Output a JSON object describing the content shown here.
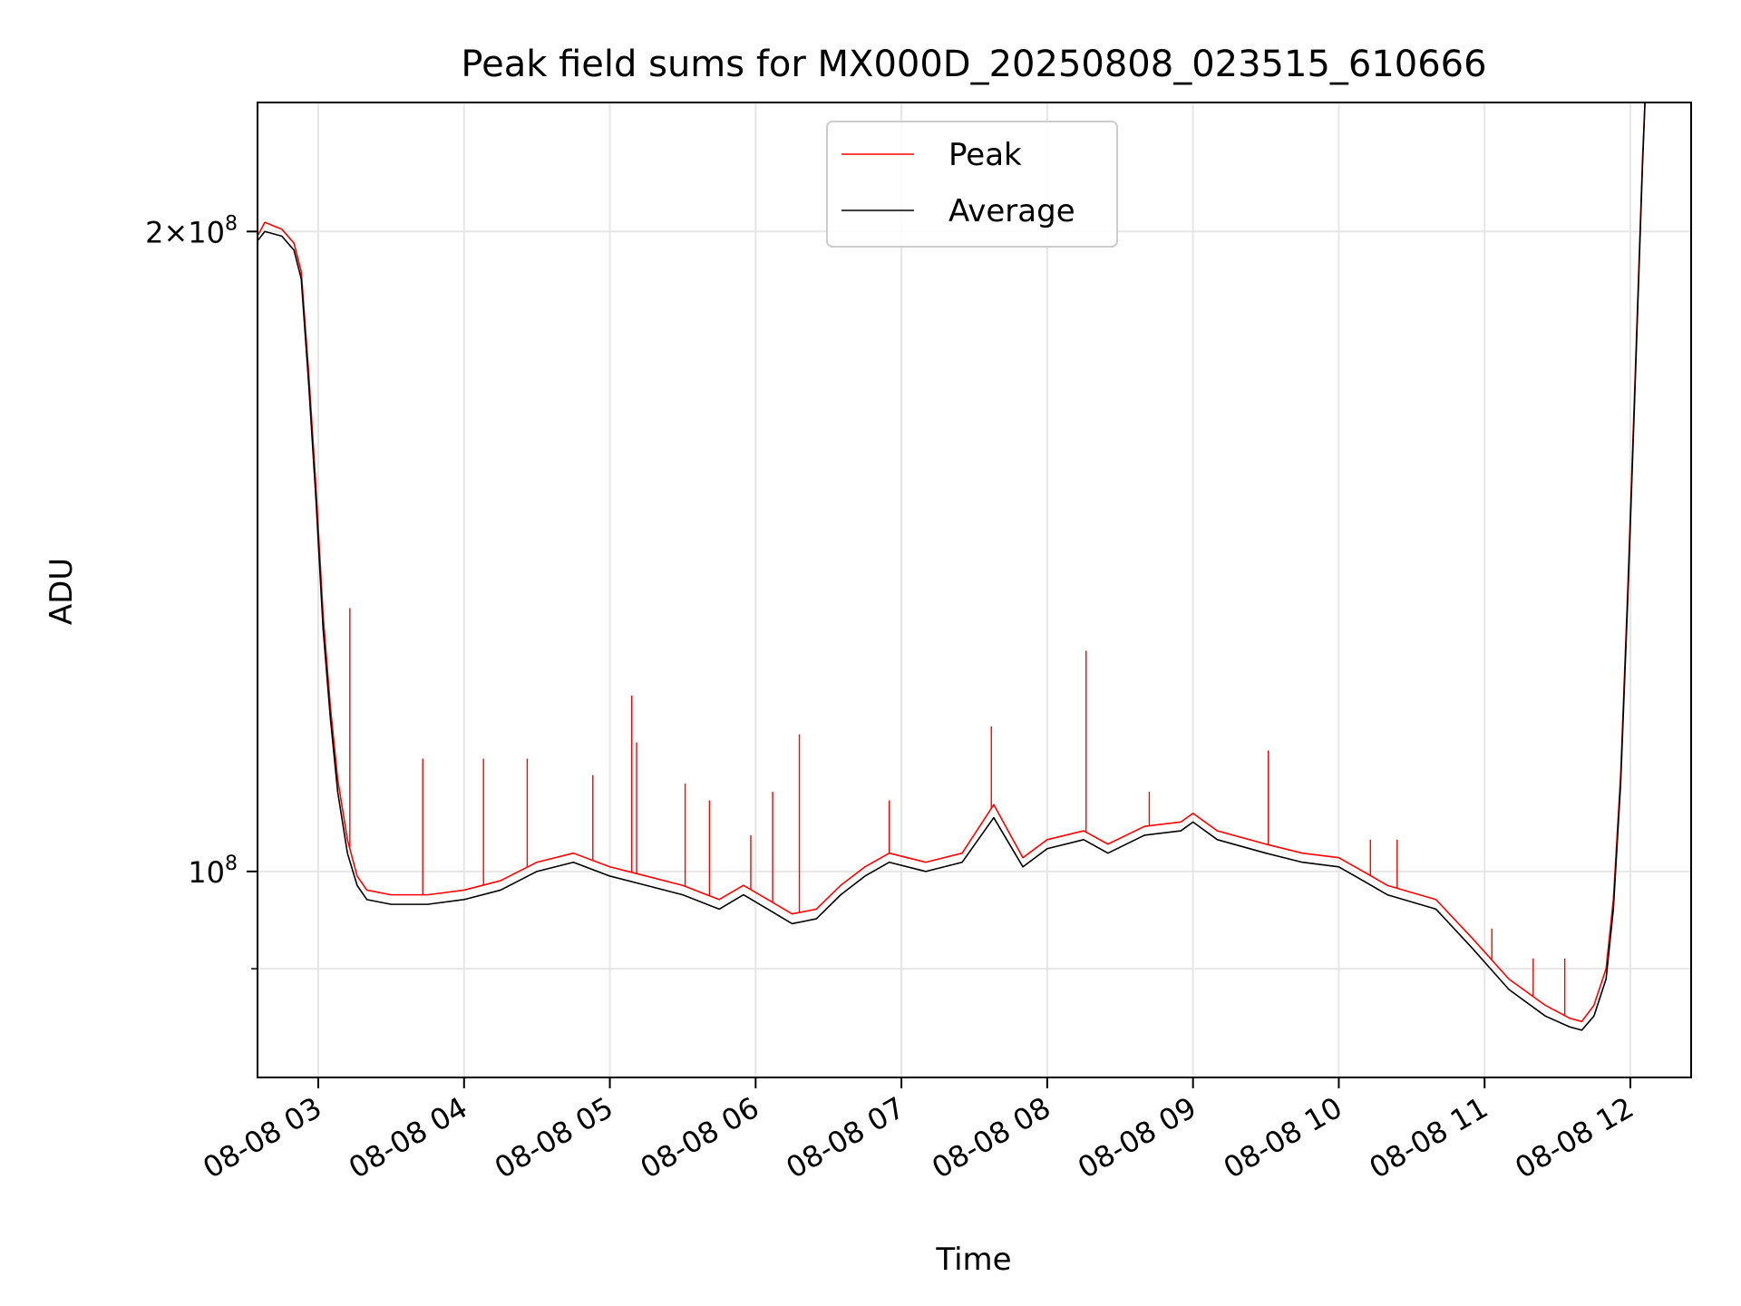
{
  "chart_data": {
    "type": "line",
    "title": "Peak field sums for MX000D_20250808_023515_610666",
    "xlabel": "Time",
    "ylabel": "ADU",
    "x_axis": "datetime",
    "y_scale": "log",
    "grid": true,
    "legend_position": "upper center",
    "xlim": [
      "2025-08-08T02:35",
      "2025-08-08T12:25"
    ],
    "ylim": [
      80000000,
      230000000
    ],
    "x_ticks": [
      {
        "t": "2025-08-08T03:00",
        "label": "08-08 03"
      },
      {
        "t": "2025-08-08T04:00",
        "label": "08-08 04"
      },
      {
        "t": "2025-08-08T05:00",
        "label": "08-08 05"
      },
      {
        "t": "2025-08-08T06:00",
        "label": "08-08 06"
      },
      {
        "t": "2025-08-08T07:00",
        "label": "08-08 07"
      },
      {
        "t": "2025-08-08T08:00",
        "label": "08-08 08"
      },
      {
        "t": "2025-08-08T09:00",
        "label": "08-08 09"
      },
      {
        "t": "2025-08-08T10:00",
        "label": "08-08 10"
      },
      {
        "t": "2025-08-08T11:00",
        "label": "08-08 11"
      },
      {
        "t": "2025-08-08T12:00",
        "label": "08-08 12"
      }
    ],
    "y_ticks_major": [
      {
        "v": 100000000,
        "base": "10",
        "exp": "8",
        "mult": ""
      },
      {
        "v": 200000000,
        "base": "10",
        "exp": "8",
        "mult": "2×"
      }
    ],
    "y_ticks_minor": [
      90000000
    ],
    "series": [
      {
        "name": "Average",
        "color": "#000000",
        "points": [
          [
            "2025-08-08T02:35",
            198000000
          ],
          [
            "2025-08-08T02:38",
            200000000
          ],
          [
            "2025-08-08T02:45",
            199000000
          ],
          [
            "2025-08-08T02:50",
            196000000
          ],
          [
            "2025-08-08T02:53",
            190000000
          ],
          [
            "2025-08-08T02:56",
            170000000
          ],
          [
            "2025-08-08T02:59",
            150000000
          ],
          [
            "2025-08-08T03:02",
            130000000
          ],
          [
            "2025-08-08T03:05",
            118000000
          ],
          [
            "2025-08-08T03:08",
            109000000
          ],
          [
            "2025-08-08T03:12",
            102000000
          ],
          [
            "2025-08-08T03:16",
            98500000
          ],
          [
            "2025-08-08T03:20",
            97000000
          ],
          [
            "2025-08-08T03:30",
            96500000
          ],
          [
            "2025-08-08T03:45",
            96500000
          ],
          [
            "2025-08-08T04:00",
            97000000
          ],
          [
            "2025-08-08T04:15",
            98000000
          ],
          [
            "2025-08-08T04:30",
            100000000
          ],
          [
            "2025-08-08T04:45",
            101000000
          ],
          [
            "2025-08-08T05:00",
            99500000
          ],
          [
            "2025-08-08T05:15",
            98500000
          ],
          [
            "2025-08-08T05:30",
            97500000
          ],
          [
            "2025-08-08T05:45",
            96000000
          ],
          [
            "2025-08-08T05:55",
            97500000
          ],
          [
            "2025-08-08T06:05",
            96000000
          ],
          [
            "2025-08-08T06:15",
            94500000
          ],
          [
            "2025-08-08T06:25",
            95000000
          ],
          [
            "2025-08-08T06:35",
            97500000
          ],
          [
            "2025-08-08T06:45",
            99500000
          ],
          [
            "2025-08-08T06:55",
            101000000
          ],
          [
            "2025-08-08T07:10",
            100000000
          ],
          [
            "2025-08-08T07:25",
            101000000
          ],
          [
            "2025-08-08T07:38",
            106000000
          ],
          [
            "2025-08-08T07:50",
            100500000
          ],
          [
            "2025-08-08T08:00",
            102500000
          ],
          [
            "2025-08-08T08:15",
            103500000
          ],
          [
            "2025-08-08T08:25",
            102000000
          ],
          [
            "2025-08-08T08:40",
            104000000
          ],
          [
            "2025-08-08T08:55",
            104500000
          ],
          [
            "2025-08-08T09:00",
            105500000
          ],
          [
            "2025-08-08T09:10",
            103500000
          ],
          [
            "2025-08-08T09:30",
            102000000
          ],
          [
            "2025-08-08T09:45",
            101000000
          ],
          [
            "2025-08-08T10:00",
            100500000
          ],
          [
            "2025-08-08T10:10",
            99000000
          ],
          [
            "2025-08-08T10:20",
            97500000
          ],
          [
            "2025-08-08T10:40",
            96000000
          ],
          [
            "2025-08-08T10:55",
            92000000
          ],
          [
            "2025-08-08T11:10",
            88000000
          ],
          [
            "2025-08-08T11:25",
            85500000
          ],
          [
            "2025-08-08T11:35",
            84500000
          ],
          [
            "2025-08-08T11:40",
            84200000
          ],
          [
            "2025-08-08T11:45",
            85500000
          ],
          [
            "2025-08-08T11:50",
            89000000
          ],
          [
            "2025-08-08T11:53",
            96000000
          ],
          [
            "2025-08-08T11:56",
            110000000
          ],
          [
            "2025-08-08T11:59",
            135000000
          ],
          [
            "2025-08-08T12:02",
            170000000
          ],
          [
            "2025-08-08T12:05",
            215000000
          ],
          [
            "2025-08-08T12:06",
            230000000
          ]
        ]
      },
      {
        "name": "Peak",
        "color": "#ff0000",
        "points": [
          [
            "2025-08-08T02:35",
            199000000
          ],
          [
            "2025-08-08T02:38",
            202000000
          ],
          [
            "2025-08-08T02:45",
            200500000
          ],
          [
            "2025-08-08T02:50",
            197500000
          ],
          [
            "2025-08-08T02:53",
            191500000
          ],
          [
            "2025-08-08T02:56",
            172000000
          ],
          [
            "2025-08-08T02:59",
            152000000
          ],
          [
            "2025-08-08T03:02",
            132000000
          ],
          [
            "2025-08-08T03:05",
            119500000
          ],
          [
            "2025-08-08T03:08",
            110500000
          ],
          [
            "2025-08-08T03:12",
            103500000
          ],
          [
            "2025-08-08T03:16",
            99500000
          ],
          [
            "2025-08-08T03:20",
            98000000
          ],
          [
            "2025-08-08T03:30",
            97500000
          ],
          [
            "2025-08-08T03:45",
            97500000
          ],
          [
            "2025-08-08T04:00",
            98000000
          ],
          [
            "2025-08-08T04:15",
            99000000
          ],
          [
            "2025-08-08T04:30",
            101000000
          ],
          [
            "2025-08-08T04:45",
            102000000
          ],
          [
            "2025-08-08T05:00",
            100500000
          ],
          [
            "2025-08-08T05:15",
            99500000
          ],
          [
            "2025-08-08T05:30",
            98500000
          ],
          [
            "2025-08-08T05:45",
            97000000
          ],
          [
            "2025-08-08T05:55",
            98500000
          ],
          [
            "2025-08-08T06:05",
            97000000
          ],
          [
            "2025-08-08T06:15",
            95500000
          ],
          [
            "2025-08-08T06:25",
            96000000
          ],
          [
            "2025-08-08T06:35",
            98500000
          ],
          [
            "2025-08-08T06:45",
            100500000
          ],
          [
            "2025-08-08T06:55",
            102000000
          ],
          [
            "2025-08-08T07:10",
            101000000
          ],
          [
            "2025-08-08T07:25",
            102000000
          ],
          [
            "2025-08-08T07:38",
            107500000
          ],
          [
            "2025-08-08T07:50",
            101500000
          ],
          [
            "2025-08-08T08:00",
            103500000
          ],
          [
            "2025-08-08T08:15",
            104500000
          ],
          [
            "2025-08-08T08:25",
            103000000
          ],
          [
            "2025-08-08T08:40",
            105000000
          ],
          [
            "2025-08-08T08:55",
            105500000
          ],
          [
            "2025-08-08T09:00",
            106500000
          ],
          [
            "2025-08-08T09:10",
            104500000
          ],
          [
            "2025-08-08T09:30",
            103000000
          ],
          [
            "2025-08-08T09:45",
            102000000
          ],
          [
            "2025-08-08T10:00",
            101500000
          ],
          [
            "2025-08-08T10:10",
            100000000
          ],
          [
            "2025-08-08T10:20",
            98500000
          ],
          [
            "2025-08-08T10:40",
            97000000
          ],
          [
            "2025-08-08T10:55",
            93000000
          ],
          [
            "2025-08-08T11:10",
            89000000
          ],
          [
            "2025-08-08T11:25",
            86500000
          ],
          [
            "2025-08-08T11:35",
            85300000
          ],
          [
            "2025-08-08T11:40",
            85000000
          ],
          [
            "2025-08-08T11:45",
            86500000
          ],
          [
            "2025-08-08T11:50",
            90000000
          ],
          [
            "2025-08-08T11:53",
            97000000
          ],
          [
            "2025-08-08T11:56",
            111000000
          ],
          [
            "2025-08-08T11:59",
            136500000
          ],
          [
            "2025-08-08T12:02",
            171500000
          ],
          [
            "2025-08-08T12:05",
            216500000
          ],
          [
            "2025-08-08T12:06",
            230000000
          ]
        ],
        "spikes": [
          [
            "2025-08-08T03:13",
            133000000
          ],
          [
            "2025-08-08T03:43",
            113000000
          ],
          [
            "2025-08-08T04:08",
            113000000
          ],
          [
            "2025-08-08T04:26",
            113000000
          ],
          [
            "2025-08-08T04:53",
            111000000
          ],
          [
            "2025-08-08T05:09",
            121000000
          ],
          [
            "2025-08-08T05:11",
            115000000
          ],
          [
            "2025-08-08T05:31",
            110000000
          ],
          [
            "2025-08-08T05:41",
            108000000
          ],
          [
            "2025-08-08T05:58",
            104000000
          ],
          [
            "2025-08-08T06:07",
            109000000
          ],
          [
            "2025-08-08T06:18",
            116000000
          ],
          [
            "2025-08-08T06:55",
            108000000
          ],
          [
            "2025-08-08T07:37",
            117000000
          ],
          [
            "2025-08-08T08:16",
            127000000
          ],
          [
            "2025-08-08T08:42",
            109000000
          ],
          [
            "2025-08-08T09:31",
            114000000
          ],
          [
            "2025-08-08T10:13",
            103500000
          ],
          [
            "2025-08-08T10:24",
            103500000
          ],
          [
            "2025-08-08T11:03",
            94000000
          ],
          [
            "2025-08-08T11:20",
            91000000
          ],
          [
            "2025-08-08T11:33",
            91000000
          ]
        ]
      }
    ],
    "legend": [
      {
        "label": "Peak",
        "color": "#ff0000"
      },
      {
        "label": "Average",
        "color": "#000000"
      }
    ]
  }
}
